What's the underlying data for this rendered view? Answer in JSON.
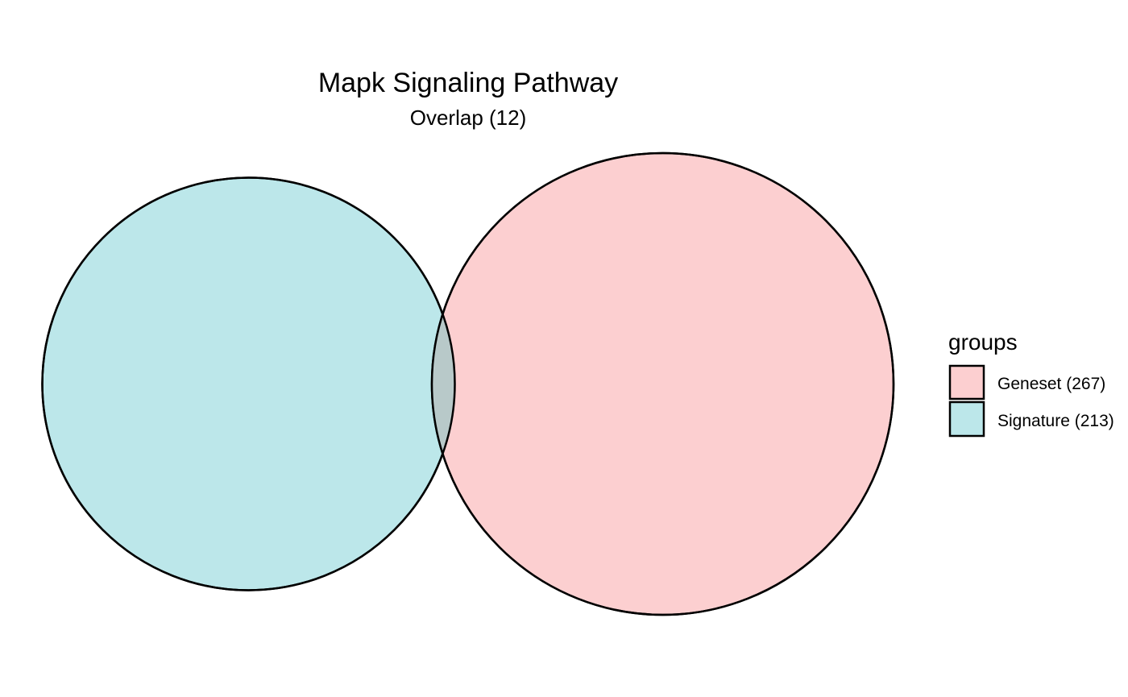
{
  "title": "Mapk Signaling Pathway",
  "subtitle": "Overlap (12)",
  "legend": {
    "title": "groups",
    "items": [
      {
        "label": "Geneset (267)",
        "color": "#fccfd0"
      },
      {
        "label": "Signature (213)",
        "color": "#bce7ea"
      }
    ]
  },
  "sets": [
    {
      "name": "Geneset",
      "size": 267,
      "color": "#fccfd0"
    },
    {
      "name": "Signature",
      "size": 213,
      "color": "#bce7ea"
    }
  ],
  "overlap": {
    "size": 12,
    "color": "#b8c9c9"
  }
}
